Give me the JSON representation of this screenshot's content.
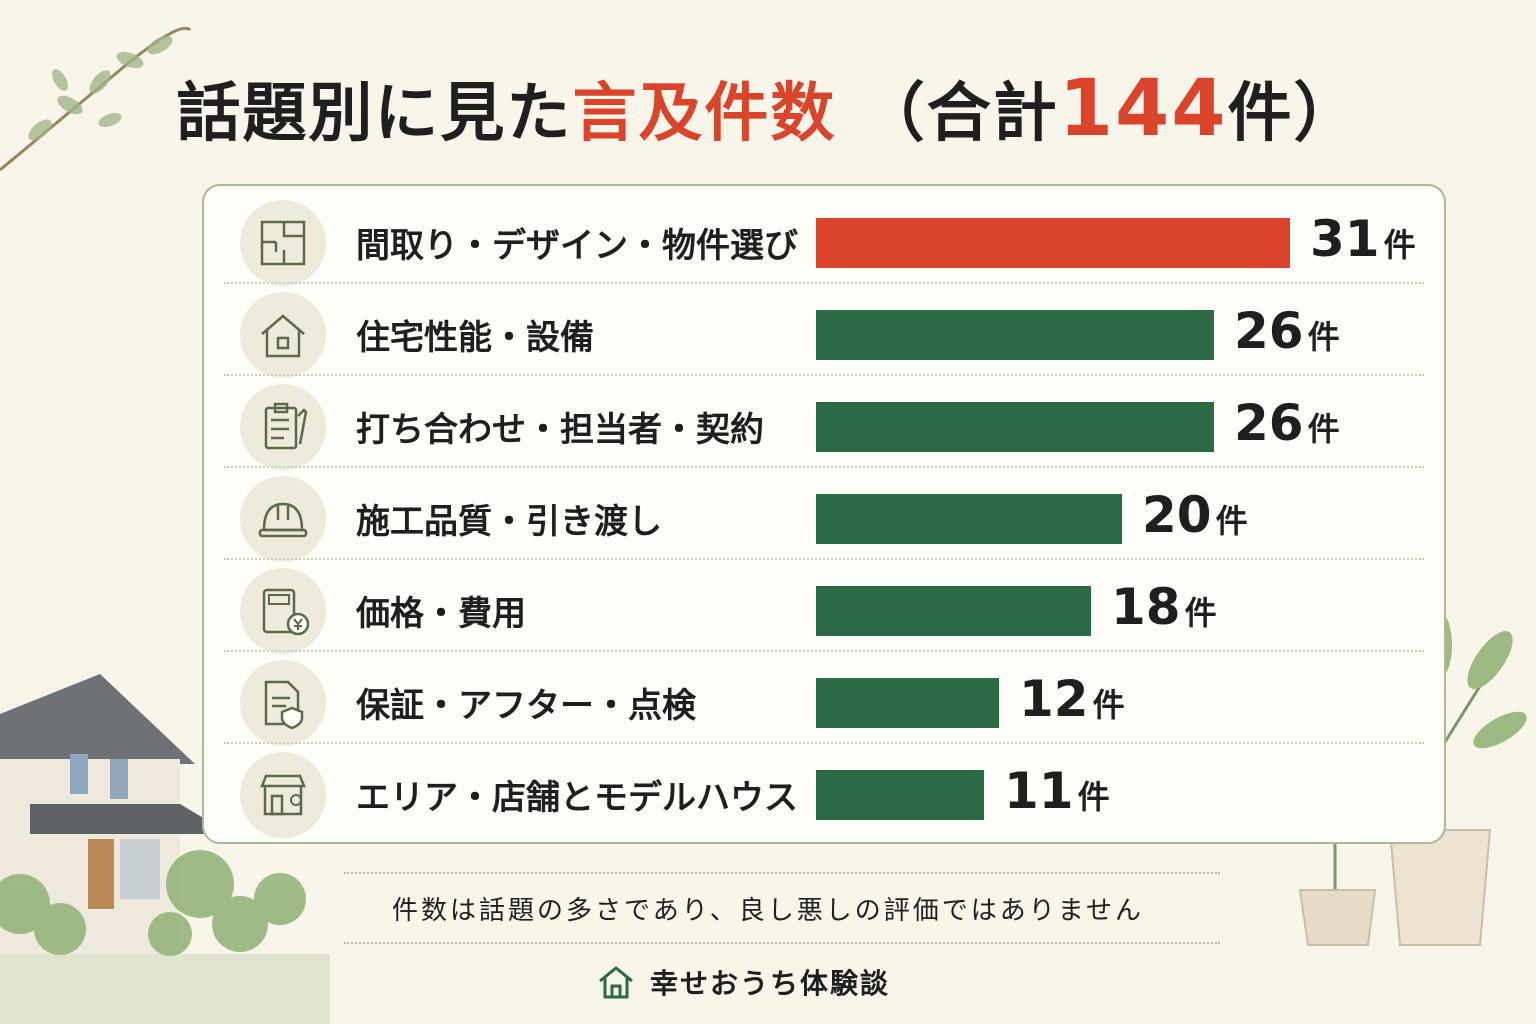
{
  "title": {
    "part1": "話題別に見た",
    "part2": "言及件数",
    "part3": "（合計",
    "total": "144",
    "part4": "件）"
  },
  "colors": {
    "highlight": "#d9442a",
    "bar": "#2a6a45",
    "text": "#1f1f1f"
  },
  "chart_data": {
    "type": "bar",
    "orientation": "horizontal",
    "title": "話題別に見た言及件数（合計144件）",
    "unit": "件",
    "categories": [
      "間取り・デザイン・物件選び",
      "住宅性能・設備",
      "打ち合わせ・担当者・契約",
      "施工品質・引き渡し",
      "価格・費用",
      "保証・アフター・点検",
      "エリア・店舗とモデルハウス"
    ],
    "values": [
      31,
      26,
      26,
      20,
      18,
      12,
      11
    ],
    "icons": [
      "floorplan-icon",
      "house-icon",
      "checklist-icon",
      "helmet-icon",
      "calculator-yen-icon",
      "document-shield-icon",
      "store-icon"
    ],
    "highlight_index": 0,
    "xlim": [
      0,
      31
    ]
  },
  "footer": {
    "note": "件数は話題の多さであり、良し悪しの評価ではありません",
    "brand": "幸せおうち体験談"
  }
}
